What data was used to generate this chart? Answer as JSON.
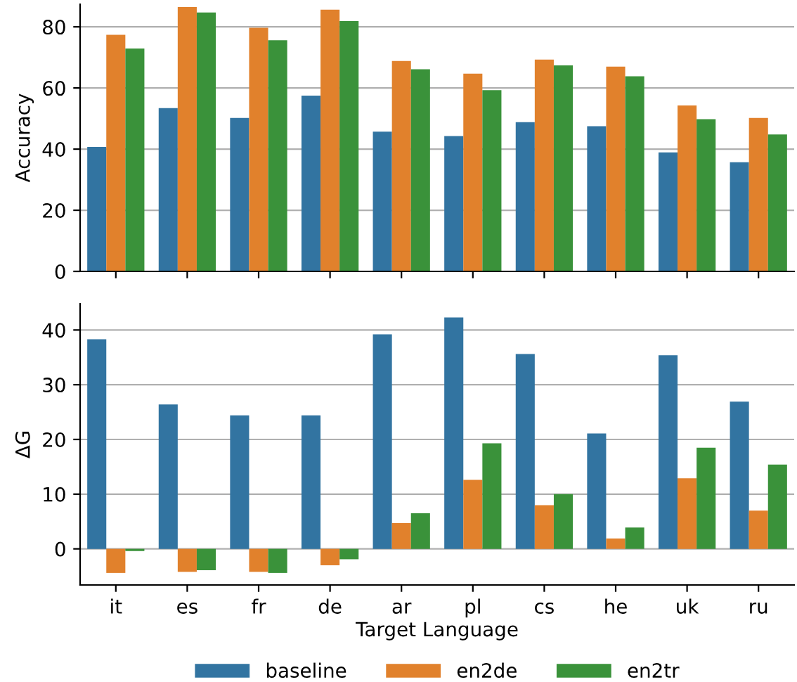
{
  "chart_data": [
    {
      "type": "bar",
      "ylabel": "Accuracy",
      "categories": [
        null,
        null,
        null,
        null,
        null,
        null,
        null,
        null,
        null,
        null
      ],
      "ylim": [
        0,
        87.4
      ],
      "yticks": [
        0,
        20,
        40,
        60,
        80
      ],
      "grid": "y",
      "series": [
        {
          "color": "#3274a1",
          "values": [
            40.7,
            53.4,
            50.2,
            57.5,
            45.7,
            44.3,
            48.8,
            47.5,
            38.9,
            35.7
          ]
        },
        {
          "color": "#e1812c",
          "values": [
            77.4,
            86.5,
            79.7,
            85.6,
            68.8,
            64.7,
            69.3,
            67.0,
            54.3,
            50.2
          ]
        },
        {
          "color": "#3a923a",
          "values": [
            72.9,
            84.7,
            75.6,
            81.9,
            66.1,
            59.3,
            67.4,
            63.8,
            49.8,
            44.8
          ]
        }
      ]
    },
    {
      "type": "bar",
      "ylabel": "ΔG",
      "xlabel": "Target Language",
      "categories": [
        "it",
        "es",
        "fr",
        "de",
        "ar",
        "pl",
        "cs",
        "he",
        "uk",
        "ru"
      ],
      "ylim": [
        -6.6,
        44.8
      ],
      "yticks": [
        0,
        10,
        20,
        30,
        40
      ],
      "grid": "y",
      "legend": "bottom",
      "series": [
        {
          "name": "baseline",
          "color": "#3274a1",
          "values": [
            38.3,
            26.4,
            24.4,
            24.4,
            39.2,
            42.3,
            35.6,
            21.1,
            35.4,
            26.9
          ]
        },
        {
          "name": "en2de",
          "color": "#e1812c",
          "values": [
            -4.4,
            -4.2,
            -4.2,
            -3.0,
            4.7,
            12.6,
            8.0,
            1.9,
            12.9,
            7.0
          ]
        },
        {
          "name": "en2tr",
          "color": "#3a923a",
          "values": [
            -0.4,
            -3.9,
            -4.4,
            -1.9,
            6.5,
            19.3,
            10.0,
            3.9,
            18.5,
            15.4
          ]
        }
      ]
    }
  ]
}
